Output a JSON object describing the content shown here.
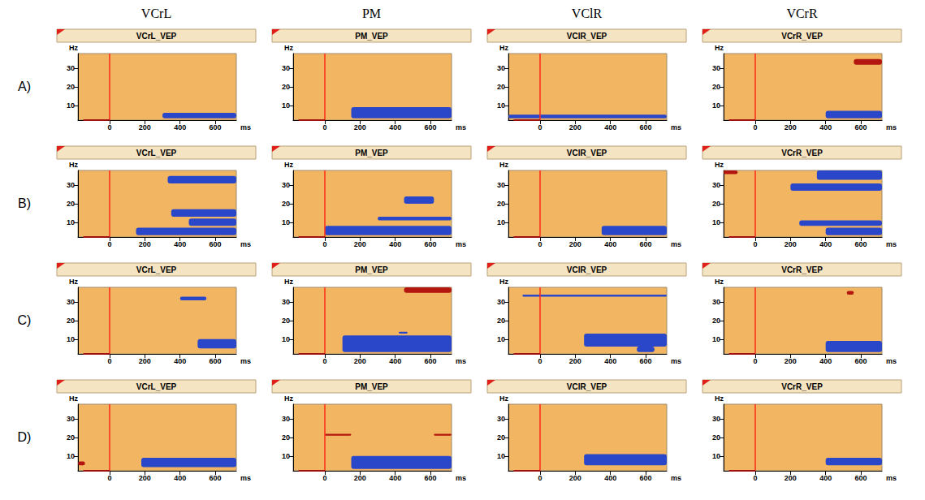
{
  "columns": [
    "VCrL",
    "PM",
    "VClR",
    "VCrR"
  ],
  "rows": [
    "A)",
    "B)",
    "C)",
    "D)"
  ],
  "chart_data": [
    {
      "type": "time_frequency",
      "title": "VCrL_VEP",
      "xlabel": "ms",
      "ylabel": "Hz",
      "xlim": [
        -180,
        720
      ],
      "ylim": [
        2,
        38
      ],
      "xticks": [
        0,
        200,
        400,
        600
      ],
      "yticks": [
        10,
        20,
        30
      ],
      "onset": 0,
      "baseline": [
        -150,
        0
      ],
      "regions": [
        {
          "color": "#2a47c9",
          "ms": [
            300,
            720
          ],
          "hz": [
            3,
            6
          ]
        }
      ]
    },
    {
      "type": "time_frequency",
      "title": "PM_VEP",
      "xlabel": "ms",
      "ylabel": "Hz",
      "xlim": [
        -180,
        720
      ],
      "ylim": [
        2,
        38
      ],
      "xticks": [
        0,
        200,
        400,
        600
      ],
      "yticks": [
        10,
        20,
        30
      ],
      "onset": 0,
      "baseline": [
        -150,
        0
      ],
      "regions": [
        {
          "color": "#2a47c9",
          "ms": [
            150,
            720
          ],
          "hz": [
            3,
            9
          ]
        }
      ]
    },
    {
      "type": "time_frequency",
      "title": "VClR_VEP",
      "xlabel": "ms",
      "ylabel": "Hz",
      "xlim": [
        -180,
        720
      ],
      "ylim": [
        2,
        38
      ],
      "xticks": [
        0,
        200,
        400,
        600
      ],
      "yticks": [
        10,
        20,
        30
      ],
      "onset": 0,
      "baseline": [
        -150,
        0
      ],
      "regions": [
        {
          "color": "#2a47c9",
          "ms": [
            -180,
            720
          ],
          "hz": [
            3,
            5
          ]
        }
      ]
    },
    {
      "type": "time_frequency",
      "title": "VCrR_VEP",
      "xlabel": "ms",
      "ylabel": "Hz",
      "xlim": [
        -180,
        720
      ],
      "ylim": [
        2,
        38
      ],
      "xticks": [
        0,
        200,
        400,
        600
      ],
      "yticks": [
        10,
        20,
        30
      ],
      "onset": 0,
      "baseline": [
        -150,
        0
      ],
      "regions": [
        {
          "color": "#b3160f",
          "ms": [
            560,
            720
          ],
          "hz": [
            32,
            35
          ]
        },
        {
          "color": "#2a47c9",
          "ms": [
            400,
            720
          ],
          "hz": [
            3,
            7
          ]
        }
      ]
    },
    {
      "type": "time_frequency",
      "title": "VCrL_VEP",
      "xlabel": "ms",
      "ylabel": "Hz",
      "xlim": [
        -180,
        720
      ],
      "ylim": [
        2,
        38
      ],
      "xticks": [
        0,
        200,
        400,
        600
      ],
      "yticks": [
        10,
        20,
        30
      ],
      "onset": 0,
      "baseline": [
        -150,
        0
      ],
      "regions": [
        {
          "color": "#2a47c9",
          "ms": [
            330,
            720
          ],
          "hz": [
            31,
            35
          ]
        },
        {
          "color": "#2a47c9",
          "ms": [
            350,
            720
          ],
          "hz": [
            13,
            17
          ]
        },
        {
          "color": "#2a47c9",
          "ms": [
            450,
            720
          ],
          "hz": [
            8,
            12
          ]
        },
        {
          "color": "#2a47c9",
          "ms": [
            150,
            720
          ],
          "hz": [
            3,
            7
          ]
        }
      ]
    },
    {
      "type": "time_frequency",
      "title": "PM_VEP",
      "xlabel": "ms",
      "ylabel": "Hz",
      "xlim": [
        -180,
        720
      ],
      "ylim": [
        2,
        38
      ],
      "xticks": [
        0,
        200,
        400,
        600
      ],
      "yticks": [
        10,
        20,
        30
      ],
      "onset": 0,
      "baseline": [
        -150,
        0
      ],
      "regions": [
        {
          "color": "#2a47c9",
          "ms": [
            450,
            620
          ],
          "hz": [
            20,
            24
          ]
        },
        {
          "color": "#2a47c9",
          "ms": [
            300,
            720
          ],
          "hz": [
            11,
            13
          ]
        },
        {
          "color": "#2a47c9",
          "ms": [
            0,
            720
          ],
          "hz": [
            3,
            8
          ]
        }
      ]
    },
    {
      "type": "time_frequency",
      "title": "VClR_VEP",
      "xlabel": "ms",
      "ylabel": "Hz",
      "xlim": [
        -180,
        720
      ],
      "ylim": [
        2,
        38
      ],
      "xticks": [
        0,
        200,
        400,
        600
      ],
      "yticks": [
        10,
        20,
        30
      ],
      "onset": 0,
      "baseline": [
        -150,
        0
      ],
      "regions": [
        {
          "color": "#2a47c9",
          "ms": [
            350,
            720
          ],
          "hz": [
            3,
            8
          ]
        }
      ]
    },
    {
      "type": "time_frequency",
      "title": "VCrR_VEP",
      "xlabel": "ms",
      "ylabel": "Hz",
      "xlim": [
        -180,
        720
      ],
      "ylim": [
        2,
        38
      ],
      "xticks": [
        0,
        200,
        400,
        600
      ],
      "yticks": [
        10,
        20,
        30
      ],
      "onset": 0,
      "baseline": [
        -150,
        0
      ],
      "regions": [
        {
          "color": "#b3160f",
          "ms": [
            -180,
            -100
          ],
          "hz": [
            36,
            38
          ]
        },
        {
          "color": "#2a47c9",
          "ms": [
            350,
            720
          ],
          "hz": [
            33,
            38
          ]
        },
        {
          "color": "#2a47c9",
          "ms": [
            200,
            720
          ],
          "hz": [
            27,
            31
          ]
        },
        {
          "color": "#2a47c9",
          "ms": [
            250,
            720
          ],
          "hz": [
            8,
            11
          ]
        },
        {
          "color": "#2a47c9",
          "ms": [
            400,
            720
          ],
          "hz": [
            3,
            7
          ]
        }
      ]
    },
    {
      "type": "time_frequency",
      "title": "VCrL_VEP",
      "xlabel": "ms",
      "ylabel": "Hz",
      "xlim": [
        -180,
        720
      ],
      "ylim": [
        2,
        38
      ],
      "xticks": [
        0,
        200,
        400,
        600
      ],
      "yticks": [
        10,
        20,
        30
      ],
      "onset": 0,
      "baseline": [
        -150,
        0
      ],
      "regions": [
        {
          "color": "#2a47c9",
          "ms": [
            400,
            550
          ],
          "hz": [
            31,
            33
          ]
        },
        {
          "color": "#2a47c9",
          "ms": [
            500,
            720
          ],
          "hz": [
            5,
            10
          ]
        }
      ]
    },
    {
      "type": "time_frequency",
      "title": "PM_VEP",
      "xlabel": "ms",
      "ylabel": "Hz",
      "xlim": [
        -180,
        720
      ],
      "ylim": [
        2,
        38
      ],
      "xticks": [
        0,
        200,
        400,
        600
      ],
      "yticks": [
        10,
        20,
        30
      ],
      "onset": 0,
      "baseline": [
        -150,
        0
      ],
      "regions": [
        {
          "color": "#b3160f",
          "ms": [
            450,
            720
          ],
          "hz": [
            35,
            38
          ]
        },
        {
          "color": "#2a47c9",
          "ms": [
            100,
            720
          ],
          "hz": [
            3,
            12
          ]
        },
        {
          "color": "#2a47c9",
          "ms": [
            420,
            470
          ],
          "hz": [
            13,
            14
          ]
        }
      ]
    },
    {
      "type": "time_frequency",
      "title": "VClR_VEP",
      "xlabel": "ms",
      "ylabel": "Hz",
      "xlim": [
        -180,
        720
      ],
      "ylim": [
        2,
        38
      ],
      "xticks": [
        0,
        200,
        400,
        600
      ],
      "yticks": [
        10,
        20,
        30
      ],
      "onset": 0,
      "baseline": [
        -150,
        0
      ],
      "regions": [
        {
          "color": "#2a47c9",
          "ms": [
            -100,
            720
          ],
          "hz": [
            33,
            34
          ]
        },
        {
          "color": "#2a47c9",
          "ms": [
            250,
            720
          ],
          "hz": [
            6,
            13
          ]
        },
        {
          "color": "#2a47c9",
          "ms": [
            550,
            650
          ],
          "hz": [
            3,
            6
          ]
        }
      ]
    },
    {
      "type": "time_frequency",
      "title": "VCrR_VEP",
      "xlabel": "ms",
      "ylabel": "Hz",
      "xlim": [
        -180,
        720
      ],
      "ylim": [
        2,
        38
      ],
      "xticks": [
        0,
        200,
        400,
        600
      ],
      "yticks": [
        10,
        20,
        30
      ],
      "onset": 0,
      "baseline": [
        -150,
        0
      ],
      "regions": [
        {
          "color": "#b3160f",
          "ms": [
            520,
            560
          ],
          "hz": [
            34,
            36
          ]
        },
        {
          "color": "#2a47c9",
          "ms": [
            400,
            720
          ],
          "hz": [
            3,
            9
          ]
        }
      ]
    },
    {
      "type": "time_frequency",
      "title": "VCrL_VEP",
      "xlabel": "ms",
      "ylabel": "Hz",
      "xlim": [
        -180,
        720
      ],
      "ylim": [
        2,
        38
      ],
      "xticks": [
        0,
        200,
        400,
        600
      ],
      "yticks": [
        10,
        20,
        30
      ],
      "onset": 0,
      "baseline": [
        -150,
        0
      ],
      "regions": [
        {
          "color": "#b3160f",
          "ms": [
            -180,
            -140
          ],
          "hz": [
            5,
            7
          ]
        },
        {
          "color": "#2a47c9",
          "ms": [
            180,
            720
          ],
          "hz": [
            4,
            9
          ]
        }
      ]
    },
    {
      "type": "time_frequency",
      "title": "PM_VEP",
      "xlabel": "ms",
      "ylabel": "Hz",
      "xlim": [
        -180,
        720
      ],
      "ylim": [
        2,
        38
      ],
      "xticks": [
        0,
        200,
        400,
        600
      ],
      "yticks": [
        10,
        20,
        30
      ],
      "onset": 0,
      "baseline": [
        -150,
        0
      ],
      "regions": [
        {
          "color": "#b3160f",
          "ms": [
            0,
            150
          ],
          "hz": [
            21,
            22
          ]
        },
        {
          "color": "#b3160f",
          "ms": [
            620,
            720
          ],
          "hz": [
            21,
            22
          ]
        },
        {
          "color": "#2a47c9",
          "ms": [
            150,
            720
          ],
          "hz": [
            3,
            10
          ]
        }
      ]
    },
    {
      "type": "time_frequency",
      "title": "VClR_VEP",
      "xlabel": "ms",
      "ylabel": "Hz",
      "xlim": [
        -180,
        720
      ],
      "ylim": [
        2,
        38
      ],
      "xticks": [
        0,
        200,
        400,
        600
      ],
      "yticks": [
        10,
        20,
        30
      ],
      "onset": 0,
      "baseline": [
        -150,
        0
      ],
      "regions": [
        {
          "color": "#2a47c9",
          "ms": [
            250,
            720
          ],
          "hz": [
            5,
            11
          ]
        }
      ]
    },
    {
      "type": "time_frequency",
      "title": "VCrR_VEP",
      "xlabel": "ms",
      "ylabel": "Hz",
      "xlim": [
        -180,
        720
      ],
      "ylim": [
        2,
        38
      ],
      "xticks": [
        0,
        200,
        400,
        600
      ],
      "yticks": [
        10,
        20,
        30
      ],
      "onset": 0,
      "baseline": [
        -150,
        0
      ],
      "regions": [
        {
          "color": "#2a47c9",
          "ms": [
            400,
            720
          ],
          "hz": [
            5,
            9
          ]
        }
      ]
    }
  ]
}
